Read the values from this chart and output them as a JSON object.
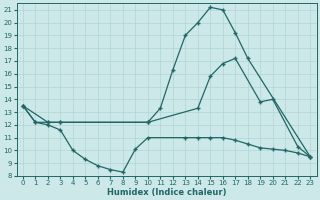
{
  "xlabel": "Humidex (Indice chaleur)",
  "bg_color": "#cce8e8",
  "grid_color": "#b0d4d4",
  "line_color": "#226666",
  "xlim": [
    -0.5,
    23.5
  ],
  "ylim": [
    8,
    21.5
  ],
  "yticks": [
    8,
    9,
    10,
    11,
    12,
    13,
    14,
    15,
    16,
    17,
    18,
    19,
    20,
    21
  ],
  "xticks": [
    0,
    1,
    2,
    3,
    4,
    5,
    6,
    7,
    8,
    9,
    10,
    11,
    12,
    13,
    14,
    15,
    16,
    17,
    18,
    19,
    20,
    21,
    22,
    23
  ],
  "line_top_x": [
    0,
    1,
    2,
    3,
    10,
    11,
    12,
    13,
    14,
    15,
    16,
    17,
    18,
    23
  ],
  "line_top_y": [
    13.5,
    12.2,
    12.2,
    12.2,
    12.2,
    13.3,
    16.3,
    19.0,
    20.0,
    21.2,
    21.0,
    19.2,
    17.2,
    9.5
  ],
  "line_bot_x": [
    0,
    1,
    2,
    3,
    4,
    5,
    6,
    7,
    8,
    9,
    10,
    13,
    14,
    15,
    16,
    17,
    18,
    19,
    20,
    21,
    22,
    23
  ],
  "line_bot_y": [
    13.5,
    12.2,
    12.0,
    11.6,
    10.0,
    9.3,
    8.8,
    8.5,
    8.3,
    10.1,
    11.0,
    11.0,
    11.0,
    11.0,
    11.0,
    10.8,
    10.5,
    10.2,
    10.1,
    10.0,
    9.8,
    9.5
  ],
  "line_mid_x": [
    0,
    2,
    3,
    10,
    14,
    15,
    16,
    17,
    19,
    20,
    22,
    23
  ],
  "line_mid_y": [
    13.5,
    12.2,
    12.2,
    12.2,
    13.3,
    15.8,
    16.8,
    17.2,
    13.8,
    14.0,
    10.3,
    9.5
  ]
}
